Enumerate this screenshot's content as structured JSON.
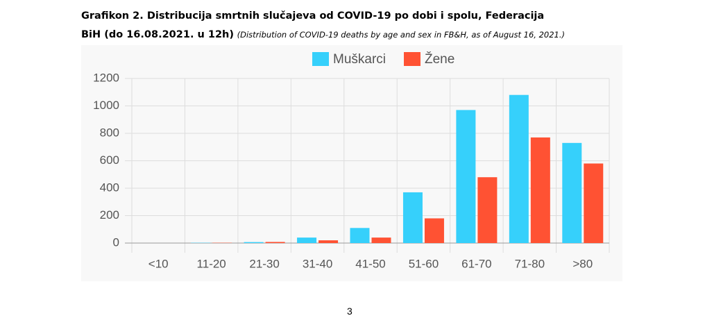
{
  "caption": {
    "bold": "Grafikon 2. Distribucija smrtnih slučajeva od COVID-19 po dobi i spolu, Federacija BiH (do 16.08.2021. u 12h)",
    "note": "(Distribution of COVID-19 deaths by age and sex in FB&H, as of August 16, 2021.)"
  },
  "chart_data": {
    "type": "bar",
    "categories": [
      "<10",
      "11-20",
      "21-30",
      "31-40",
      "41-50",
      "51-60",
      "61-70",
      "71-80",
      ">80"
    ],
    "series": [
      {
        "name": "Muškarci",
        "color": "#36d0fb",
        "values": [
          0,
          2,
          7,
          40,
          110,
          370,
          970,
          1080,
          730
        ]
      },
      {
        "name": "Žene",
        "color": "#ff5233",
        "values": [
          0,
          2,
          8,
          20,
          40,
          180,
          480,
          770,
          580
        ]
      }
    ],
    "ylim": [
      0,
      1200
    ],
    "yticks": [
      0,
      200,
      400,
      600,
      800,
      1000,
      1200
    ],
    "grid": true,
    "legend": "top"
  },
  "page_number": 3
}
